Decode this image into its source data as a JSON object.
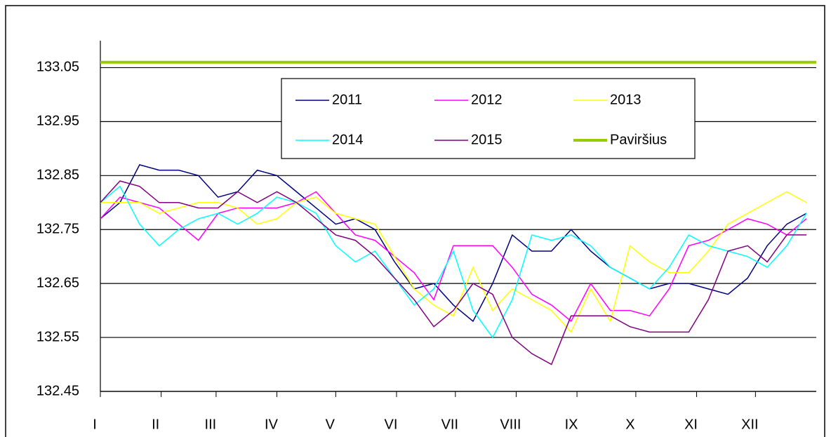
{
  "chart_data": {
    "type": "line",
    "x": [
      0,
      10,
      20,
      30,
      40,
      50,
      60,
      70,
      80,
      90,
      100,
      110,
      120,
      130,
      140,
      150,
      160,
      170,
      180,
      190,
      200,
      210,
      220,
      230,
      240,
      250,
      260,
      270,
      280,
      290,
      300,
      310,
      320,
      330,
      340,
      350,
      360
    ],
    "xlim": [
      0,
      365
    ],
    "xticks": [
      {
        "value": 0,
        "label": "I"
      },
      {
        "value": 31,
        "label": "II"
      },
      {
        "value": 59,
        "label": "III"
      },
      {
        "value": 90,
        "label": "IV"
      },
      {
        "value": 120,
        "label": "V"
      },
      {
        "value": 151,
        "label": "VI"
      },
      {
        "value": 181,
        "label": "VII"
      },
      {
        "value": 212,
        "label": "VIII"
      },
      {
        "value": 243,
        "label": "IX"
      },
      {
        "value": 273,
        "label": "X"
      },
      {
        "value": 304,
        "label": "XI"
      },
      {
        "value": 334,
        "label": "XII"
      }
    ],
    "ylim": [
      132.45,
      133.1
    ],
    "yticks": [
      132.45,
      132.55,
      132.65,
      132.75,
      132.85,
      132.95,
      133.05
    ],
    "grid": true,
    "series": [
      {
        "name": "2011",
        "color": "#000080",
        "values": [
          132.77,
          132.8,
          132.87,
          132.86,
          132.86,
          132.85,
          132.81,
          132.82,
          132.86,
          132.85,
          132.82,
          132.79,
          132.76,
          132.77,
          132.75,
          132.69,
          132.64,
          132.65,
          132.61,
          132.58,
          132.65,
          132.74,
          132.71,
          132.71,
          132.75,
          132.71,
          132.68,
          132.66,
          132.64,
          132.65,
          132.65,
          132.64,
          132.63,
          132.66,
          132.72,
          132.76,
          132.78
        ]
      },
      {
        "name": "2012",
        "color": "#ff00ff",
        "values": [
          132.77,
          132.81,
          132.8,
          132.79,
          132.76,
          132.73,
          132.78,
          132.79,
          132.79,
          132.79,
          132.8,
          132.82,
          132.78,
          132.74,
          132.73,
          132.7,
          132.67,
          132.62,
          132.72,
          132.72,
          132.72,
          132.68,
          132.63,
          132.61,
          132.58,
          132.65,
          132.6,
          132.6,
          132.59,
          132.64,
          132.72,
          132.73,
          132.75,
          132.77,
          132.76,
          132.74,
          132.77
        ]
      },
      {
        "name": "2013",
        "color": "#ffff00",
        "values": [
          132.8,
          132.8,
          132.8,
          132.78,
          132.79,
          132.8,
          132.8,
          132.79,
          132.76,
          132.77,
          132.8,
          132.81,
          132.78,
          132.77,
          132.76,
          132.7,
          132.64,
          132.61,
          132.59,
          132.68,
          132.6,
          132.64,
          132.62,
          132.6,
          132.56,
          132.64,
          132.58,
          132.72,
          132.69,
          132.67,
          132.67,
          132.71,
          132.76,
          132.78,
          132.8,
          132.82,
          132.8
        ]
      },
      {
        "name": "2014",
        "color": "#00ffff",
        "values": [
          132.8,
          132.83,
          132.76,
          132.72,
          132.75,
          132.77,
          132.78,
          132.76,
          132.78,
          132.81,
          132.8,
          132.78,
          132.72,
          132.69,
          132.71,
          132.66,
          132.61,
          132.64,
          132.71,
          132.6,
          132.55,
          132.62,
          132.74,
          132.73,
          132.74,
          132.72,
          132.68,
          132.66,
          132.64,
          132.68,
          132.74,
          132.72,
          132.71,
          132.7,
          132.68,
          132.72,
          132.78
        ]
      },
      {
        "name": "2015",
        "color": "#800080",
        "values": [
          132.8,
          132.84,
          132.83,
          132.8,
          132.8,
          132.79,
          132.79,
          132.82,
          132.8,
          132.82,
          132.8,
          132.77,
          132.74,
          132.73,
          132.7,
          132.66,
          132.62,
          132.57,
          132.6,
          132.65,
          132.63,
          132.55,
          132.52,
          132.5,
          132.59,
          132.59,
          132.59,
          132.57,
          132.56,
          132.56,
          132.56,
          132.62,
          132.71,
          132.72,
          132.69,
          132.74,
          132.74
        ]
      },
      {
        "name": "Paviršius",
        "color": "#99cc00",
        "value": 133.06
      }
    ]
  }
}
